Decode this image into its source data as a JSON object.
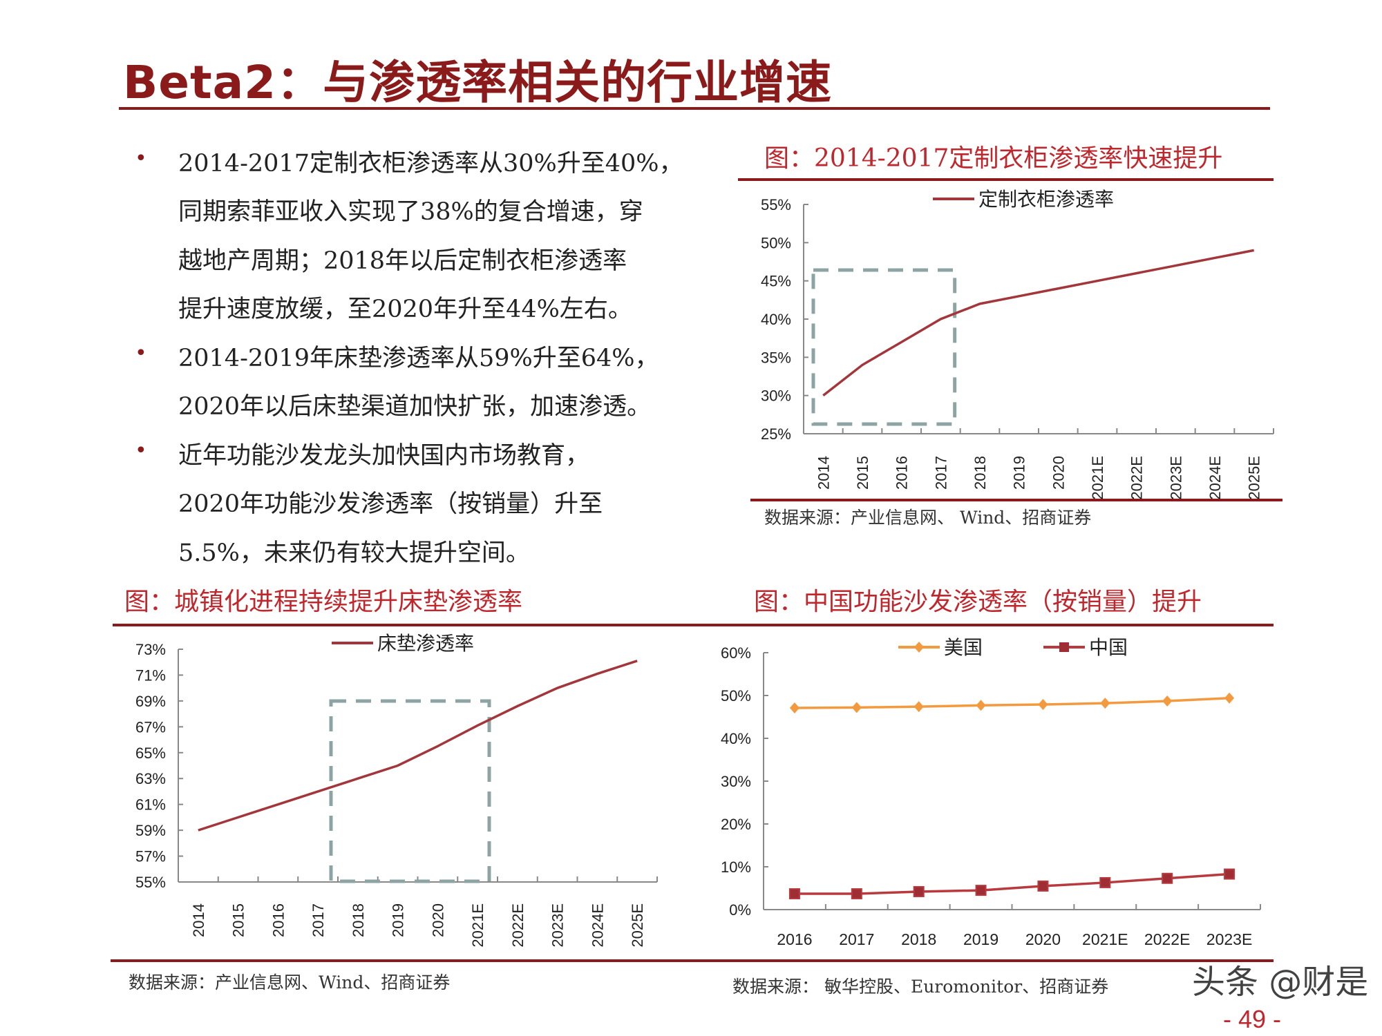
{
  "header": {
    "title": "Beta2：与渗透率相关的行业增速"
  },
  "bullets": [
    {
      "lines": [
        "2014-2017定制衣柜渗透率从30%升至40%，",
        "同期索菲亚收入实现了38%的复合增速，穿",
        "越地产周期；2018年以后定制衣柜渗透率",
        "提升速度放缓，至2020年升至44%左右。"
      ]
    },
    {
      "lines": [
        "2014-2019年床垫渗透率从59%升至64%，",
        "2020年以后床垫渠道加快扩张，加速渗透。"
      ]
    },
    {
      "lines": [
        "近年功能沙发龙头加快国内市场教育，",
        "2020年功能沙发渗透率（按销量）升至",
        "5.5%，未来仍有较大提升空间。"
      ]
    }
  ],
  "bullet_symbol": "•",
  "figures": {
    "wardrobe": {
      "caption": "图：2014-2017定制衣柜渗透率快速提升",
      "source": "数据来源：产业信息网、 Wind、招商证券"
    },
    "mattress": {
      "caption": "图：城镇化进程持续提升床垫渗透率",
      "source": "数据来源：产业信息网、Wind、招商证券"
    },
    "sofa": {
      "caption": "图：中国功能沙发渗透率（按销量）提升",
      "source": "数据来源：  敏华控股、Euromonitor、招商证券"
    }
  },
  "chart_data": [
    {
      "type": "line",
      "categories": [
        "2014",
        "2015",
        "2016",
        "2017",
        "2018",
        "2019",
        "2020",
        "2021E",
        "2022E",
        "2023E",
        "2024E",
        "2025E"
      ],
      "series": [
        {
          "name": "定制衣柜渗透率",
          "values": [
            30,
            34,
            37,
            40,
            42,
            43,
            44,
            45,
            46,
            47,
            48,
            49
          ],
          "color": "#a3363a",
          "marker": "none"
        }
      ],
      "yticks": [
        "25%",
        "30%",
        "35%",
        "40%",
        "45%",
        "50%",
        "55%"
      ],
      "ylim": [
        25,
        55
      ],
      "xlabel_rotation": "vertical",
      "legend": "top",
      "highlight": {
        "from": "2014",
        "to": "2017",
        "style": "dashed",
        "color": "#8ea3a3"
      }
    },
    {
      "type": "line",
      "categories": [
        "2014",
        "2015",
        "2016",
        "2017",
        "2018",
        "2019",
        "2020",
        "2021E",
        "2022E",
        "2023E",
        "2024E",
        "2025E"
      ],
      "series": [
        {
          "name": "床垫渗透率",
          "values": [
            59,
            60,
            61,
            62,
            63,
            64,
            65.5,
            67.1,
            68.6,
            70,
            71.1,
            72.1
          ],
          "color": "#a3363a",
          "marker": "none"
        }
      ],
      "yticks": [
        "55%",
        "57%",
        "59%",
        "61%",
        "63%",
        "65%",
        "67%",
        "69%",
        "71%",
        "73%"
      ],
      "ylim": [
        55,
        73
      ],
      "xlabel_rotation": "vertical",
      "legend": "top",
      "highlight": {
        "from": "2018",
        "to": "2021E",
        "style": "dashed",
        "color": "#8ea3a3"
      }
    },
    {
      "type": "line",
      "categories": [
        "2016",
        "2017",
        "2018",
        "2019",
        "2020",
        "2021E",
        "2022E",
        "2023E"
      ],
      "series": [
        {
          "name": "美国",
          "values": [
            47.1,
            47.2,
            47.4,
            47.7,
            47.9,
            48.2,
            48.7,
            49.4
          ],
          "color": "#f39a3f",
          "marker": "diamond"
        },
        {
          "name": "中国",
          "values": [
            3.7,
            3.7,
            4.2,
            4.5,
            5.5,
            6.3,
            7.3,
            8.3
          ],
          "color": "#b8393e",
          "marker": "square"
        }
      ],
      "yticks": [
        "0%",
        "10%",
        "20%",
        "30%",
        "40%",
        "50%",
        "60%"
      ],
      "ylim": [
        0,
        60
      ],
      "xlabel_rotation": "horizontal",
      "legend": "top"
    }
  ],
  "watermark": "头条 @财是",
  "page_number": "- 49 -",
  "colors": {
    "brand": "#8b1a1a",
    "caption": "#c0272d",
    "highlight_box": "#8ea3a3"
  }
}
